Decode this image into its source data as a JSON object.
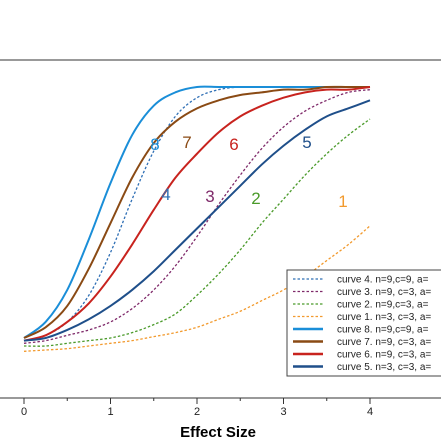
{
  "chart_data": {
    "type": "line",
    "xlabel": "Effect Size",
    "ylabel": "",
    "xlim": [
      -0.25,
      4.25
    ],
    "ylim": [
      0,
      1.15
    ],
    "x_ticks": [
      "0",
      "1",
      "2",
      "3",
      "4"
    ],
    "grid": false,
    "legend_position": "bottom-right",
    "series": [
      {
        "name": "curve 4. n=9,c=9, a=",
        "label": "4",
        "color": "#2f6fb5",
        "dash": "dotted",
        "x": [
          0,
          0.25,
          0.5,
          0.75,
          1.0,
          1.25,
          1.5,
          1.75,
          2.0,
          2.25,
          2.5,
          2.75,
          3.0,
          3.25,
          3.5,
          3.75,
          4.0
        ],
        "y": [
          0.05,
          0.07,
          0.12,
          0.22,
          0.38,
          0.58,
          0.76,
          0.89,
          0.96,
          0.99,
          1.0,
          1.0,
          1.0,
          1.0,
          1.0,
          1.0,
          1.0
        ]
      },
      {
        "name": "curve 3. n=9, c=3, a=",
        "label": "3",
        "color": "#7f2a6a",
        "dash": "dotted",
        "x": [
          0,
          0.25,
          0.5,
          0.75,
          1.0,
          1.25,
          1.5,
          1.75,
          2.0,
          2.25,
          2.5,
          2.75,
          3.0,
          3.25,
          3.5,
          3.75,
          4.0
        ],
        "y": [
          0.04,
          0.05,
          0.07,
          0.09,
          0.12,
          0.17,
          0.24,
          0.33,
          0.44,
          0.56,
          0.67,
          0.77,
          0.85,
          0.91,
          0.95,
          0.98,
          0.99
        ]
      },
      {
        "name": "curve 2. n=9,c=3, a=",
        "label": "2",
        "color": "#4a9a2a",
        "dash": "dotted",
        "x": [
          0,
          0.25,
          0.5,
          0.75,
          1.0,
          1.25,
          1.5,
          1.75,
          2.0,
          2.25,
          2.5,
          2.75,
          3.0,
          3.25,
          3.5,
          3.75,
          4.0
        ],
        "y": [
          0.03,
          0.03,
          0.04,
          0.05,
          0.06,
          0.08,
          0.11,
          0.15,
          0.22,
          0.3,
          0.39,
          0.49,
          0.58,
          0.67,
          0.75,
          0.82,
          0.88
        ]
      },
      {
        "name": "curve 1. n=3, c=3, a=",
        "label": "1",
        "color": "#f29a2e",
        "dash": "dotted",
        "x": [
          0,
          0.25,
          0.5,
          0.75,
          1.0,
          1.25,
          1.5,
          1.75,
          2.0,
          2.25,
          2.5,
          2.75,
          3.0,
          3.25,
          3.5,
          3.75,
          4.0
        ],
        "y": [
          0.01,
          0.015,
          0.02,
          0.03,
          0.04,
          0.05,
          0.065,
          0.08,
          0.1,
          0.13,
          0.16,
          0.2,
          0.24,
          0.29,
          0.35,
          0.41,
          0.48
        ]
      },
      {
        "name": "curve 8. n=9,c=9, a=",
        "label": "8",
        "color": "#1a8ed8",
        "dash": "solid",
        "x": [
          0,
          0.25,
          0.5,
          0.75,
          1.0,
          1.25,
          1.5,
          1.75,
          2.0,
          2.25,
          2.5,
          2.75,
          3.0,
          3.25,
          3.5,
          3.75,
          4.0
        ],
        "y": [
          0.06,
          0.12,
          0.24,
          0.43,
          0.64,
          0.82,
          0.93,
          0.98,
          1.0,
          1.0,
          1.0,
          1.0,
          1.0,
          1.0,
          1.0,
          1.0,
          1.0
        ]
      },
      {
        "name": "curve 7. n=9, c=3, a=",
        "label": "7",
        "color": "#8a4a14",
        "dash": "solid",
        "x": [
          0,
          0.25,
          0.5,
          0.75,
          1.0,
          1.25,
          1.5,
          1.75,
          2.0,
          2.25,
          2.5,
          2.75,
          3.0,
          3.25,
          3.5,
          3.75,
          4.0
        ],
        "y": [
          0.06,
          0.1,
          0.18,
          0.32,
          0.49,
          0.66,
          0.79,
          0.87,
          0.92,
          0.95,
          0.97,
          0.98,
          0.99,
          0.99,
          1.0,
          1.0,
          1.0
        ]
      },
      {
        "name": "curve 6. n=9, c=3, a=",
        "label": "6",
        "color": "#c8231e",
        "dash": "solid",
        "x": [
          0,
          0.25,
          0.5,
          0.75,
          1.0,
          1.25,
          1.5,
          1.75,
          2.0,
          2.25,
          2.5,
          2.75,
          3.0,
          3.25,
          3.5,
          3.75,
          4.0
        ],
        "y": [
          0.05,
          0.07,
          0.12,
          0.19,
          0.29,
          0.41,
          0.54,
          0.66,
          0.75,
          0.83,
          0.89,
          0.93,
          0.96,
          0.98,
          0.99,
          0.99,
          1.0
        ]
      },
      {
        "name": "curve 5. n=3, c=3, a=",
        "label": "5",
        "color": "#1f4f8a",
        "dash": "solid",
        "x": [
          0,
          0.25,
          0.5,
          0.75,
          1.0,
          1.25,
          1.5,
          1.75,
          2.0,
          2.25,
          2.5,
          2.75,
          3.0,
          3.25,
          3.5,
          3.75,
          4.0
        ],
        "y": [
          0.05,
          0.06,
          0.09,
          0.13,
          0.18,
          0.24,
          0.31,
          0.39,
          0.47,
          0.55,
          0.63,
          0.71,
          0.78,
          0.84,
          0.89,
          0.92,
          0.95
        ]
      }
    ]
  }
}
